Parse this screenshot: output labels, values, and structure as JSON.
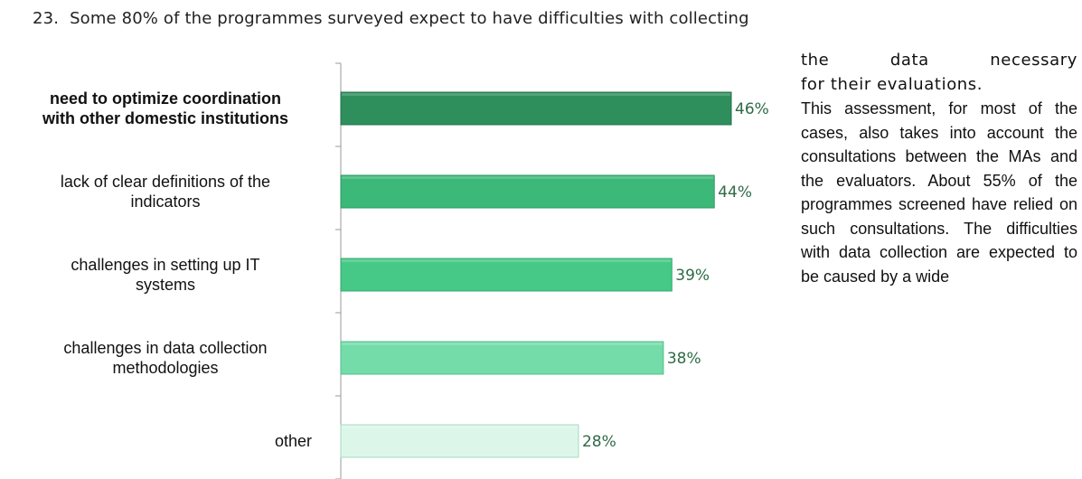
{
  "document": {
    "paragraph_number": "23.",
    "intro_line": "Some 80% of the programmes surveyed expect to have difficulties with collecting",
    "side_lead_1": "the data necessary",
    "side_lead_2": "for their evaluations.",
    "side_body": "This assessment, for most of the cases, also takes into account the consultations between the MAs and the evaluators. About 55% of the programmes screened have relied on such consultations. The difficulties with data collection are expected to be caused by a wide"
  },
  "chart_data": {
    "type": "bar",
    "orientation": "horizontal",
    "categories": [
      [
        "need to optimize coordination",
        "with other domestic institutions"
      ],
      [
        "lack of clear definitions of the",
        "indicators"
      ],
      [
        "challenges in setting up IT",
        "systems"
      ],
      [
        "challenges in data collection",
        "methodologies"
      ],
      [
        "other"
      ]
    ],
    "values": [
      46,
      44,
      39,
      38,
      28
    ],
    "value_labels": [
      "46%",
      "44%",
      "39%",
      "38%",
      "28%"
    ],
    "unit": "%",
    "xlim": [
      0,
      50
    ],
    "grid": false,
    "legend": "none",
    "colors": [
      "#2f8f5c",
      "#3cb878",
      "#46c986",
      "#74dca9",
      "#dcf7ea"
    ],
    "stroke_colors": [
      "#22724a",
      "#2c9a61",
      "#34a86d",
      "#52bd88",
      "#a9d9bf"
    ]
  }
}
